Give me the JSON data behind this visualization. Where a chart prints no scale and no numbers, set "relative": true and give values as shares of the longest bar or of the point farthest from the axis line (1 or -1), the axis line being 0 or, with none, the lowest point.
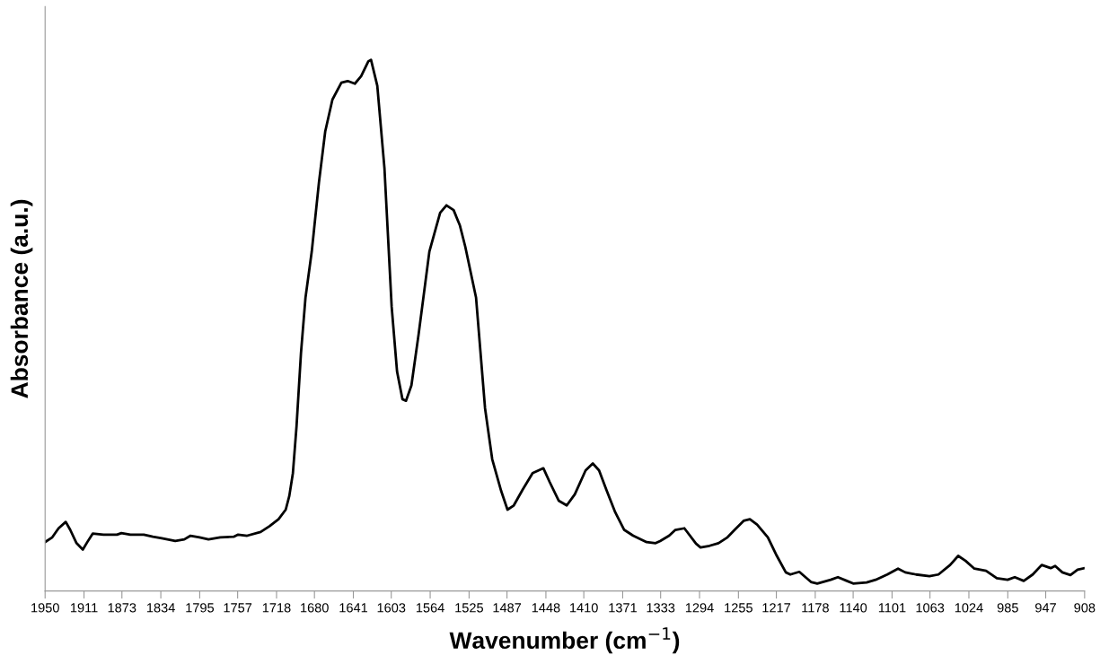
{
  "chart_data": {
    "type": "line",
    "xlabel": "Wavenumber (cm$^{−1}$)",
    "ylabel": "Absorbance (a.u.)",
    "relative": true,
    "xlim": [
      1950,
      908
    ],
    "xticks": [
      1950,
      1911,
      1873,
      1834,
      1795,
      1757,
      1718,
      1680,
      1641,
      1603,
      1564,
      1525,
      1487,
      1448,
      1410,
      1371,
      1333,
      1294,
      1255,
      1217,
      1178,
      1140,
      1101,
      1063,
      1024,
      985,
      947,
      908
    ],
    "grid": false,
    "marker": "none",
    "line_style": "solid",
    "series": [
      {
        "color": "#000000",
        "x": [
          1950,
          1942.8,
          1936.5,
          1929.3,
          1924.8,
          1918.5,
          1912.2,
          1907.7,
          1902.3,
          1891.5,
          1878,
          1873.5,
          1864.5,
          1851,
          1842,
          1833,
          1819.5,
          1810.5,
          1804.2,
          1795.2,
          1786.2,
          1774.5,
          1761,
          1756.5,
          1747.5,
          1734,
          1725,
          1716,
          1708.8,
          1705.2,
          1701.6,
          1698,
          1693.5,
          1689,
          1682.7,
          1675.5,
          1669.2,
          1662,
          1653,
          1646.7,
          1639.5,
          1633.2,
          1626,
          1623.3,
          1617,
          1609.8,
          1602.6,
          1597.2,
          1591.8,
          1588.2,
          1582.8,
          1575.6,
          1564.8,
          1554,
          1547.7,
          1540.5,
          1534.2,
          1528.8,
          1518,
          1509,
          1501.8,
          1492.8,
          1486.5,
          1480.2,
          1471.2,
          1461.3,
          1450.5,
          1444.2,
          1435.2,
          1427.1,
          1419,
          1408.2,
          1401,
          1394.7,
          1387.5,
          1378.5,
          1369.5,
          1360.5,
          1347,
          1338,
          1333.5,
          1324.5,
          1318.2,
          1309.2,
          1297.5,
          1293,
          1284,
          1275,
          1266,
          1258.8,
          1249.8,
          1243.5,
          1236.3,
          1225.5,
          1216.5,
          1207.5,
          1203,
          1194,
          1182.3,
          1176,
          1162.5,
          1155.3,
          1146.3,
          1140,
          1126.5,
          1117.5,
          1105.8,
          1095,
          1087.8,
          1077,
          1063.5,
          1054.5,
          1042.8,
          1034.7,
          1027.5,
          1018.5,
          1006.8,
          996,
          985.2,
          978,
          969,
          960,
          951,
          942,
          937.5,
          930.3,
          922.2,
          915,
          908
        ],
        "values": [
          0.092,
          0.101,
          0.118,
          0.13,
          0.115,
          0.09,
          0.078,
          0.092,
          0.108,
          0.106,
          0.106,
          0.109,
          0.106,
          0.106,
          0.102,
          0.099,
          0.094,
          0.097,
          0.104,
          0.101,
          0.097,
          0.101,
          0.102,
          0.106,
          0.104,
          0.111,
          0.122,
          0.135,
          0.153,
          0.179,
          0.222,
          0.309,
          0.448,
          0.552,
          0.639,
          0.769,
          0.865,
          0.925,
          0.957,
          0.96,
          0.955,
          0.969,
          0.997,
          1,
          0.951,
          0.795,
          0.535,
          0.413,
          0.361,
          0.358,
          0.387,
          0.483,
          0.639,
          0.712,
          0.726,
          0.717,
          0.688,
          0.648,
          0.552,
          0.344,
          0.248,
          0.188,
          0.153,
          0.161,
          0.191,
          0.222,
          0.231,
          0.205,
          0.17,
          0.161,
          0.182,
          0.227,
          0.24,
          0.227,
          0.191,
          0.148,
          0.115,
          0.104,
          0.092,
          0.09,
          0.094,
          0.104,
          0.115,
          0.118,
          0.089,
          0.082,
          0.085,
          0.09,
          0.101,
          0.115,
          0.132,
          0.135,
          0.125,
          0.101,
          0.066,
          0.035,
          0.031,
          0.036,
          0.017,
          0.014,
          0.021,
          0.026,
          0.019,
          0.014,
          0.016,
          0.021,
          0.031,
          0.042,
          0.035,
          0.031,
          0.028,
          0.031,
          0.049,
          0.066,
          0.057,
          0.042,
          0.038,
          0.024,
          0.021,
          0.026,
          0.019,
          0.031,
          0.049,
          0.043,
          0.047,
          0.035,
          0.03,
          0.04,
          0.043
        ]
      }
    ]
  }
}
